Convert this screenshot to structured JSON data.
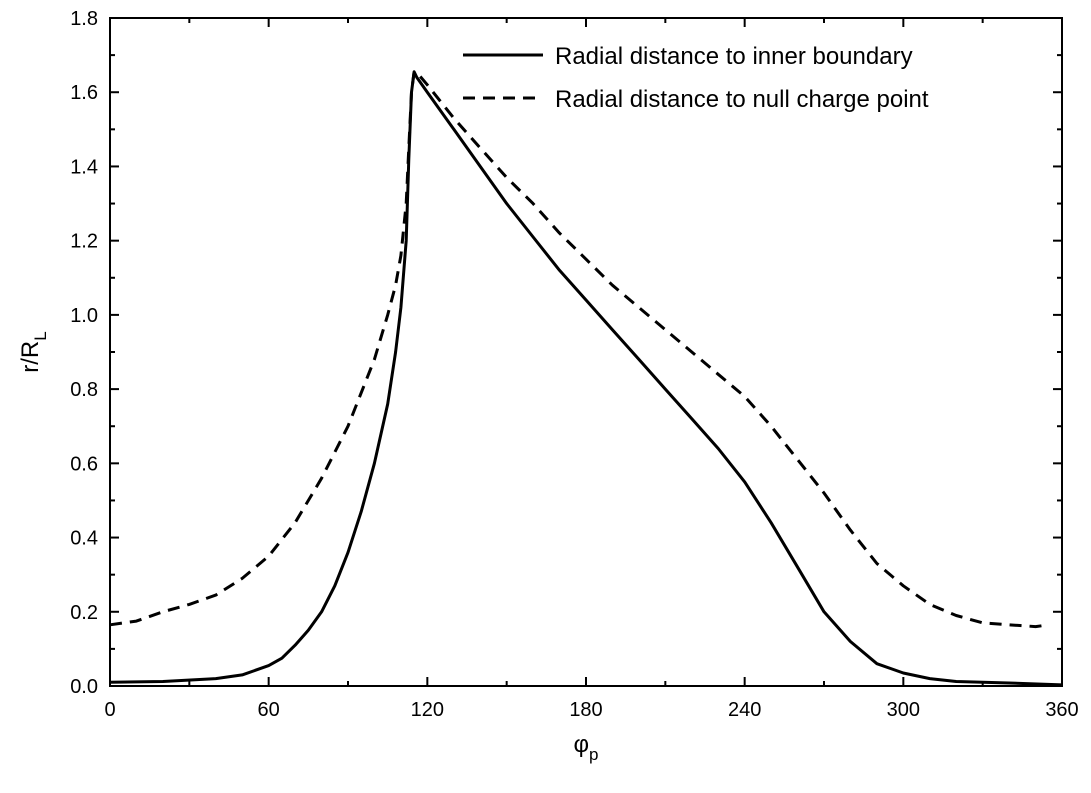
{
  "chart_data": {
    "type": "line",
    "xlabel": "φ",
    "xlabel_sub": "p",
    "ylabel": "r/R",
    "ylabel_sub": "L",
    "xlim": [
      0,
      360
    ],
    "ylim": [
      0.0,
      1.8
    ],
    "xticks": [
      0,
      60,
      120,
      180,
      240,
      300,
      360
    ],
    "xtick_labels": [
      "0",
      "60",
      "120",
      "180",
      "240",
      "300",
      "360"
    ],
    "yticks": [
      0.0,
      0.2,
      0.4,
      0.6,
      0.8,
      1.0,
      1.2,
      1.4,
      1.6,
      1.8
    ],
    "ytick_labels": [
      "0.0",
      "0.2",
      "0.4",
      "0.6",
      "0.8",
      "1.0",
      "1.2",
      "1.4",
      "1.6",
      "1.8"
    ],
    "grid": false,
    "legend_position": "top-right",
    "series": [
      {
        "name": "Radial distance to inner boundary",
        "style": "solid",
        "color": "#000000",
        "points": [
          [
            0,
            0.01
          ],
          [
            20,
            0.012
          ],
          [
            40,
            0.02
          ],
          [
            50,
            0.03
          ],
          [
            60,
            0.055
          ],
          [
            65,
            0.075
          ],
          [
            70,
            0.11
          ],
          [
            75,
            0.15
          ],
          [
            80,
            0.2
          ],
          [
            85,
            0.27
          ],
          [
            90,
            0.36
          ],
          [
            95,
            0.47
          ],
          [
            100,
            0.6
          ],
          [
            105,
            0.76
          ],
          [
            108,
            0.9
          ],
          [
            110,
            1.02
          ],
          [
            112,
            1.2
          ],
          [
            113,
            1.42
          ],
          [
            114,
            1.6
          ],
          [
            115,
            1.655
          ],
          [
            116,
            1.64
          ],
          [
            120,
            1.6
          ],
          [
            130,
            1.5
          ],
          [
            140,
            1.4
          ],
          [
            150,
            1.3
          ],
          [
            160,
            1.21
          ],
          [
            170,
            1.12
          ],
          [
            180,
            1.04
          ],
          [
            190,
            0.96
          ],
          [
            200,
            0.88
          ],
          [
            210,
            0.8
          ],
          [
            220,
            0.72
          ],
          [
            230,
            0.64
          ],
          [
            240,
            0.55
          ],
          [
            250,
            0.44
          ],
          [
            260,
            0.32
          ],
          [
            270,
            0.2
          ],
          [
            280,
            0.12
          ],
          [
            290,
            0.06
          ],
          [
            300,
            0.035
          ],
          [
            310,
            0.02
          ],
          [
            320,
            0.012
          ],
          [
            340,
            0.008
          ],
          [
            360,
            0.003
          ]
        ]
      },
      {
        "name": "Radial distance to null charge point",
        "style": "dashed",
        "color": "#000000",
        "points": [
          [
            0,
            0.165
          ],
          [
            10,
            0.175
          ],
          [
            20,
            0.2
          ],
          [
            30,
            0.22
          ],
          [
            40,
            0.245
          ],
          [
            50,
            0.29
          ],
          [
            60,
            0.35
          ],
          [
            70,
            0.44
          ],
          [
            80,
            0.56
          ],
          [
            90,
            0.7
          ],
          [
            100,
            0.88
          ],
          [
            105,
            1.0
          ],
          [
            108,
            1.08
          ],
          [
            110,
            1.16
          ],
          [
            112,
            1.3
          ],
          [
            113,
            1.45
          ],
          [
            114,
            1.6
          ],
          [
            115,
            1.655
          ],
          [
            117,
            1.645
          ],
          [
            120,
            1.62
          ],
          [
            130,
            1.53
          ],
          [
            140,
            1.45
          ],
          [
            150,
            1.37
          ],
          [
            160,
            1.3
          ],
          [
            170,
            1.22
          ],
          [
            180,
            1.15
          ],
          [
            190,
            1.08
          ],
          [
            200,
            1.02
          ],
          [
            210,
            0.96
          ],
          [
            220,
            0.9
          ],
          [
            230,
            0.84
          ],
          [
            240,
            0.78
          ],
          [
            250,
            0.7
          ],
          [
            260,
            0.61
          ],
          [
            270,
            0.52
          ],
          [
            280,
            0.42
          ],
          [
            290,
            0.33
          ],
          [
            300,
            0.27
          ],
          [
            310,
            0.22
          ],
          [
            320,
            0.19
          ],
          [
            330,
            0.17
          ],
          [
            340,
            0.165
          ],
          [
            350,
            0.16
          ],
          [
            355,
            0.165
          ]
        ]
      }
    ]
  }
}
